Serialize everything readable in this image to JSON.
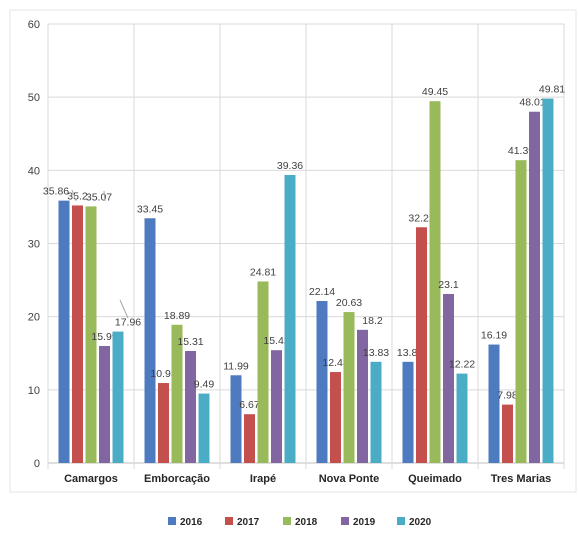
{
  "chart_data": {
    "type": "bar",
    "title": "",
    "xlabel": "",
    "ylabel": "",
    "categories": [
      "Camargos",
      "Emborcação",
      "Irapé",
      "Nova Ponte",
      "Queimado",
      "Tres Marias"
    ],
    "ylim": [
      0,
      60
    ],
    "yticks": [
      "0",
      "10",
      "20",
      "30",
      "40",
      "50",
      "60"
    ],
    "grid": true,
    "legend_position": "bottom",
    "series": [
      {
        "name": "2016",
        "color": "#4e7ac0",
        "values": [
          35.86,
          33.45,
          11.99,
          22.14,
          13.83,
          16.19
        ],
        "labels": [
          "35.86",
          "33.45",
          "11.99",
          "22.14",
          "13.83",
          "16.19"
        ]
      },
      {
        "name": "2017",
        "color": "#c3504d",
        "values": [
          35.2,
          10.93,
          6.67,
          12.43,
          32.22,
          7.98
        ],
        "labels": [
          "35.2",
          "10.93",
          "6.67",
          "12.43",
          "32.22",
          "7.98"
        ]
      },
      {
        "name": "2018",
        "color": "#99ba5a",
        "values": [
          35.07,
          18.89,
          24.81,
          20.63,
          49.45,
          41.39
        ],
        "labels": [
          "35.07",
          "18.89",
          "24.81",
          "20.63",
          "49.45",
          "41.39"
        ]
      },
      {
        "name": "2019",
        "color": "#8166a2",
        "values": [
          15.99,
          15.31,
          15.42,
          18.2,
          23.1,
          48.01
        ],
        "labels": [
          "15.99",
          "15.31",
          "15.42",
          "18.2",
          "23.1",
          "48.01"
        ]
      },
      {
        "name": "2020",
        "color": "#4bacc6",
        "values": [
          17.96,
          9.49,
          39.36,
          13.83,
          12.22,
          49.81
        ],
        "labels": [
          "17.96",
          "9.49",
          "39.36",
          "13.83",
          "12.22",
          "49.81"
        ]
      }
    ]
  }
}
